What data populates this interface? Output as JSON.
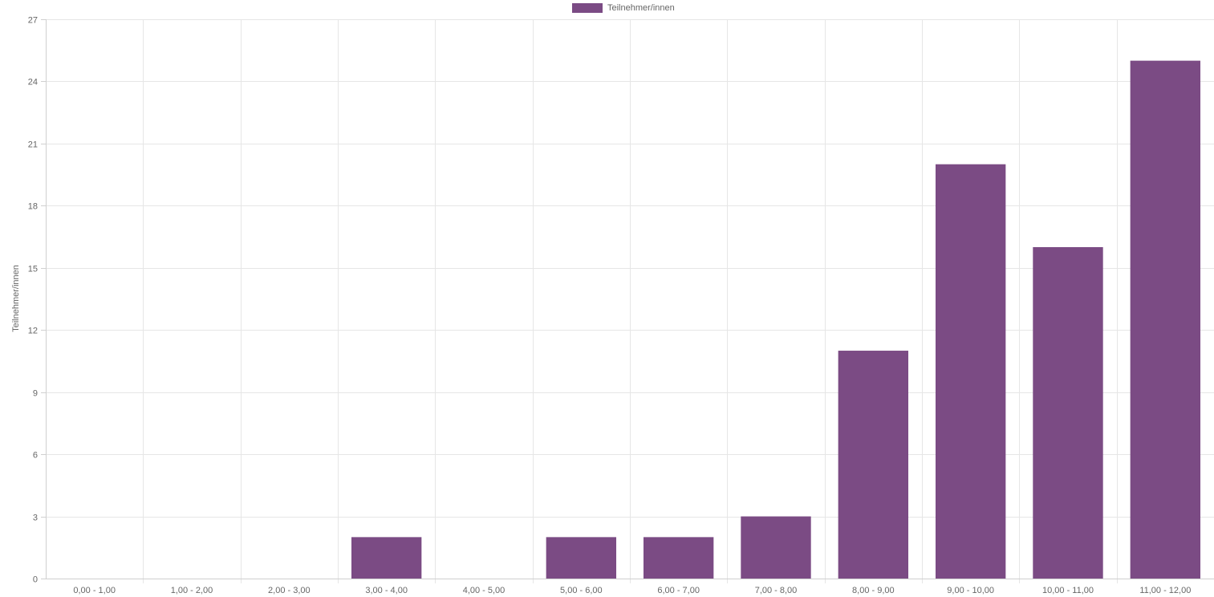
{
  "chart_data": {
    "type": "bar",
    "categories": [
      "0,00 - 1,00",
      "1,00 - 2,00",
      "2,00 - 3,00",
      "3,00 - 4,00",
      "4,00 - 5,00",
      "5,00 - 6,00",
      "6,00 - 7,00",
      "7,00 - 8,00",
      "8,00 - 9,00",
      "9,00 - 10,00",
      "10,00 - 11,00",
      "11,00 - 12,00"
    ],
    "series": [
      {
        "name": "Teilnehmer/innen",
        "values": [
          0,
          0,
          0,
          2,
          0,
          2,
          2,
          3,
          11,
          20,
          16,
          25
        ],
        "color": "#7b4b84"
      }
    ],
    "ylabel": "Teilnehmer/innen",
    "xlabel": "",
    "ylim": [
      0,
      27
    ],
    "yticks": [
      0,
      3,
      6,
      9,
      12,
      15,
      18,
      21,
      24,
      27
    ],
    "grid": true,
    "legend": "top-center"
  }
}
